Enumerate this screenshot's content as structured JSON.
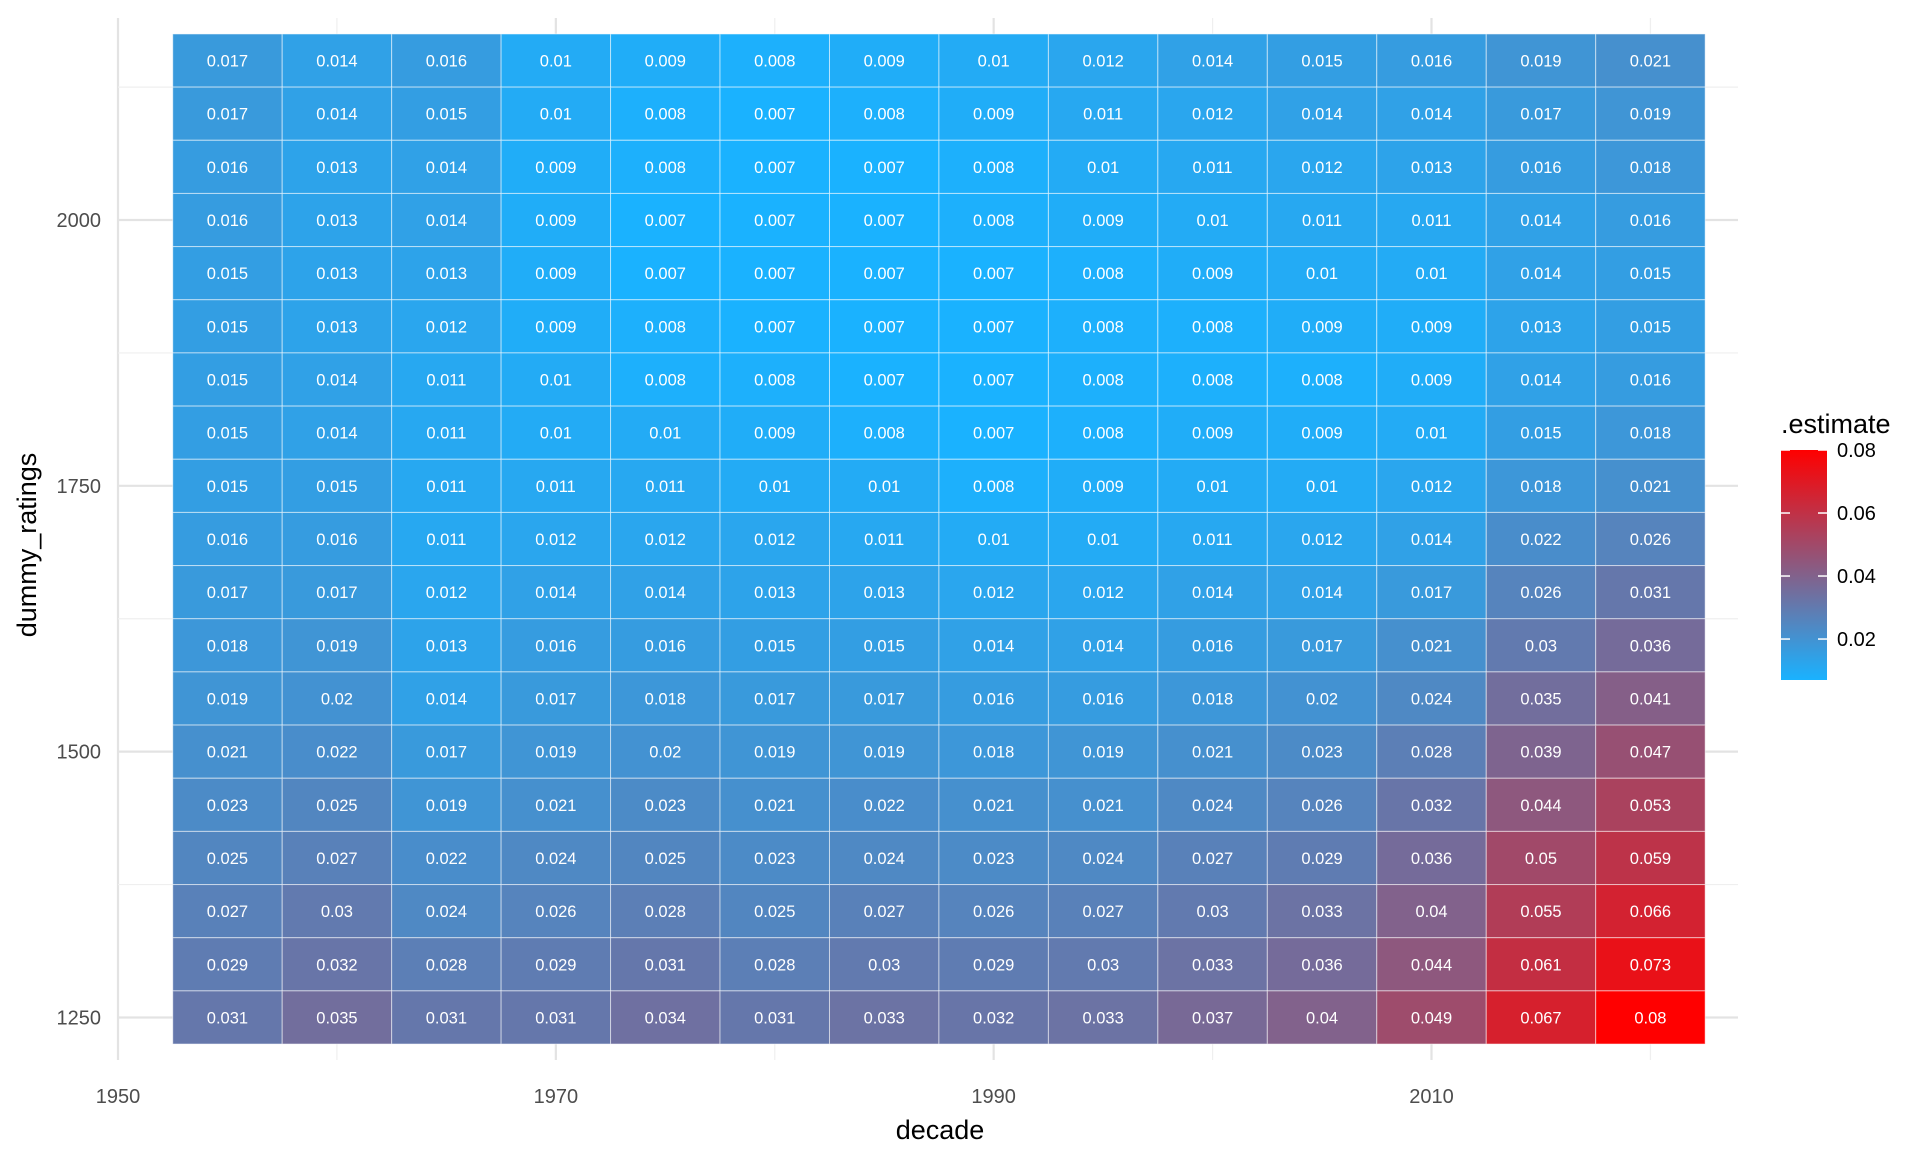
{
  "chart_data": {
    "type": "heatmap",
    "xlabel": "decade",
    "ylabel": "dummy_ratings",
    "x": [
      1955,
      1960,
      1965,
      1970,
      1975,
      1980,
      1985,
      1990,
      1995,
      2000,
      2005,
      2010,
      2015,
      2020
    ],
    "y": [
      2150,
      2100,
      2050,
      2000,
      1950,
      1900,
      1850,
      1800,
      1750,
      1700,
      1650,
      1600,
      1550,
      1500,
      1450,
      1400,
      1350,
      1300,
      1250
    ],
    "values": [
      [
        0.017,
        0.014,
        0.016,
        0.01,
        0.009,
        0.008,
        0.009,
        0.01,
        0.012,
        0.014,
        0.015,
        0.016,
        0.019,
        0.021
      ],
      [
        0.017,
        0.014,
        0.015,
        0.01,
        0.008,
        0.007,
        0.008,
        0.009,
        0.011,
        0.012,
        0.014,
        0.014,
        0.017,
        0.019
      ],
      [
        0.016,
        0.013,
        0.014,
        0.009,
        0.008,
        0.007,
        0.007,
        0.008,
        0.01,
        0.011,
        0.012,
        0.013,
        0.016,
        0.018
      ],
      [
        0.016,
        0.013,
        0.014,
        0.009,
        0.007,
        0.007,
        0.007,
        0.008,
        0.009,
        0.01,
        0.011,
        0.011,
        0.014,
        0.016
      ],
      [
        0.015,
        0.013,
        0.013,
        0.009,
        0.007,
        0.007,
        0.007,
        0.007,
        0.008,
        0.009,
        0.01,
        0.01,
        0.014,
        0.015
      ],
      [
        0.015,
        0.013,
        0.012,
        0.009,
        0.008,
        0.007,
        0.007,
        0.007,
        0.008,
        0.008,
        0.009,
        0.009,
        0.013,
        0.015
      ],
      [
        0.015,
        0.014,
        0.011,
        0.01,
        0.008,
        0.008,
        0.007,
        0.007,
        0.008,
        0.008,
        0.008,
        0.009,
        0.014,
        0.016
      ],
      [
        0.015,
        0.014,
        0.011,
        0.01,
        0.01,
        0.009,
        0.008,
        0.007,
        0.008,
        0.009,
        0.009,
        0.01,
        0.015,
        0.018
      ],
      [
        0.015,
        0.015,
        0.011,
        0.011,
        0.011,
        0.01,
        0.01,
        0.008,
        0.009,
        0.01,
        0.01,
        0.012,
        0.018,
        0.021
      ],
      [
        0.016,
        0.016,
        0.011,
        0.012,
        0.012,
        0.012,
        0.011,
        0.01,
        0.01,
        0.011,
        0.012,
        0.014,
        0.022,
        0.026
      ],
      [
        0.017,
        0.017,
        0.012,
        0.014,
        0.014,
        0.013,
        0.013,
        0.012,
        0.012,
        0.014,
        0.014,
        0.017,
        0.026,
        0.031
      ],
      [
        0.018,
        0.019,
        0.013,
        0.016,
        0.016,
        0.015,
        0.015,
        0.014,
        0.014,
        0.016,
        0.017,
        0.021,
        0.03,
        0.036
      ],
      [
        0.019,
        0.02,
        0.014,
        0.017,
        0.018,
        0.017,
        0.017,
        0.016,
        0.016,
        0.018,
        0.02,
        0.024,
        0.035,
        0.041
      ],
      [
        0.021,
        0.022,
        0.017,
        0.019,
        0.02,
        0.019,
        0.019,
        0.018,
        0.019,
        0.021,
        0.023,
        0.028,
        0.039,
        0.047
      ],
      [
        0.023,
        0.025,
        0.019,
        0.021,
        0.023,
        0.021,
        0.022,
        0.021,
        0.021,
        0.024,
        0.026,
        0.032,
        0.044,
        0.053
      ],
      [
        0.025,
        0.027,
        0.022,
        0.024,
        0.025,
        0.023,
        0.024,
        0.023,
        0.024,
        0.027,
        0.029,
        0.036,
        0.05,
        0.059
      ],
      [
        0.027,
        0.03,
        0.024,
        0.026,
        0.028,
        0.025,
        0.027,
        0.026,
        0.027,
        0.03,
        0.033,
        0.04,
        0.055,
        0.066
      ],
      [
        0.029,
        0.032,
        0.028,
        0.029,
        0.031,
        0.028,
        0.03,
        0.029,
        0.03,
        0.033,
        0.036,
        0.044,
        0.061,
        0.073
      ],
      [
        0.031,
        0.035,
        0.031,
        0.031,
        0.034,
        0.031,
        0.033,
        0.032,
        0.033,
        0.037,
        0.04,
        0.049,
        0.067,
        0.08
      ]
    ],
    "x_ticks": [
      1950,
      1970,
      1990,
      2010
    ],
    "y_ticks": [
      1250,
      1500,
      1750,
      2000
    ],
    "xlim": [
      1950,
      2024
    ],
    "ylim": [
      1210,
      2190
    ],
    "grid": true,
    "legend": {
      "title": ".estimate",
      "placement": "right",
      "ticks": [
        0.02,
        0.04,
        0.06,
        0.08
      ],
      "low_color": "#1AB2FF",
      "high_color": "#FF0000",
      "range": [
        0.007,
        0.08
      ]
    }
  }
}
